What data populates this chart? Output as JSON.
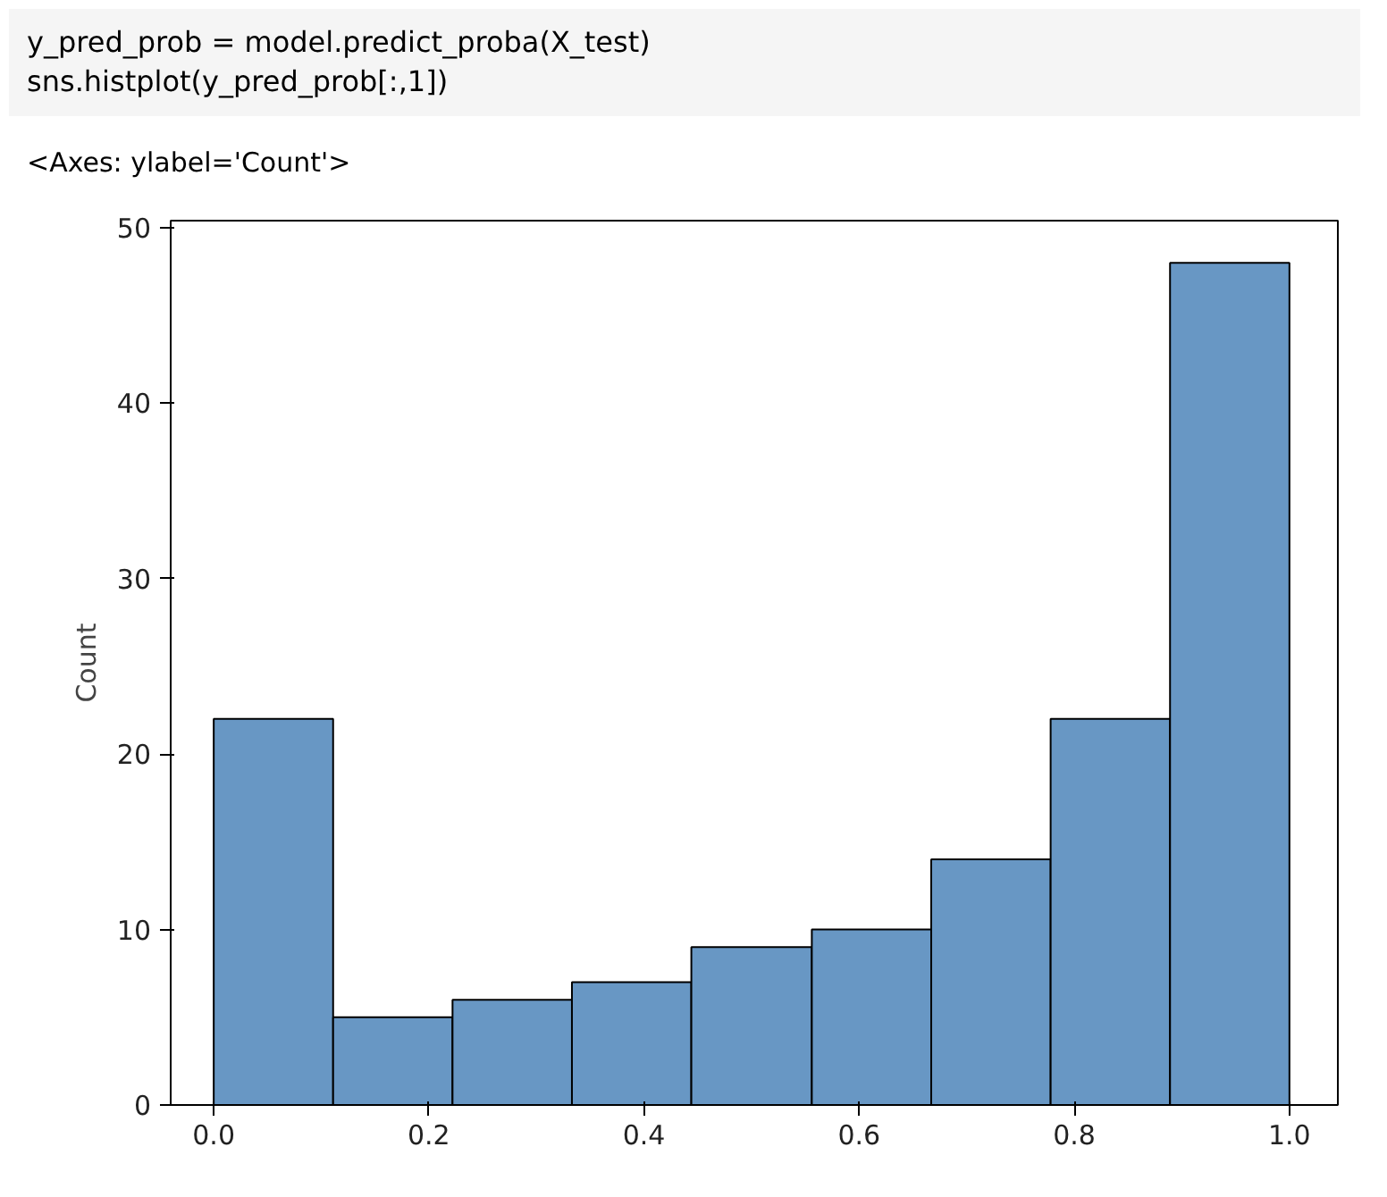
{
  "chart_data": {
    "type": "histogram",
    "annotations": [
      "y_pred_prob = model.predict_proba(X_test)\nsns.histplot(y_pred_prob[:,1])",
      "<Axes: ylabel='Count'>"
    ],
    "ylabel": "Count",
    "bins": [
      0.0,
      0.111,
      0.222,
      0.333,
      0.444,
      0.556,
      0.667,
      0.778,
      0.889,
      1.0
    ],
    "values": [
      22,
      5,
      6,
      7,
      9,
      10,
      14,
      22,
      48
    ],
    "color": "#6897c4",
    "xlim": [
      -0.04,
      1.045
    ],
    "ylim": [
      0,
      50.4
    ],
    "xticks": [
      {
        "value": 0,
        "label": "0.0"
      },
      {
        "value": 0.2,
        "label": "0.2"
      },
      {
        "value": 0.4,
        "label": "0.4"
      },
      {
        "value": 0.6,
        "label": "0.6"
      },
      {
        "value": 0.8,
        "label": "0.8"
      },
      {
        "value": 1,
        "label": "1.0"
      }
    ],
    "yticks": [
      0,
      10,
      20,
      30,
      40,
      50
    ],
    "grid": false
  }
}
